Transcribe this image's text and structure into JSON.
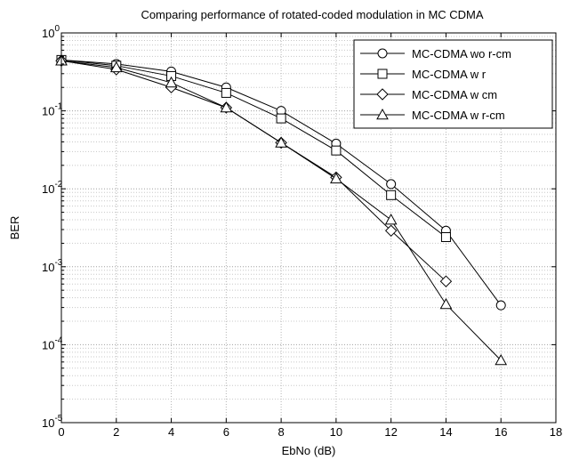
{
  "chart_data": {
    "type": "line",
    "title": "Comparing performance of rotated-coded modulation in MC CDMA",
    "xlabel": "EbNo (dB)",
    "ylabel": "BER",
    "xlim": [
      0,
      18
    ],
    "ylim": [
      1e-05,
      1
    ],
    "yscale": "log",
    "grid": true,
    "legend_position": "top-right",
    "x_ticks": [
      0,
      2,
      4,
      6,
      8,
      10,
      12,
      14,
      16,
      18
    ],
    "y_ticks": [
      {
        "base": "10",
        "exp": "-5",
        "value": 1e-05
      },
      {
        "base": "10",
        "exp": "-4",
        "value": 0.0001
      },
      {
        "base": "10",
        "exp": "-3",
        "value": 0.001
      },
      {
        "base": "10",
        "exp": "-2",
        "value": 0.01
      },
      {
        "base": "10",
        "exp": "-1",
        "value": 0.1
      },
      {
        "base": "10",
        "exp": "0",
        "value": 1
      }
    ],
    "series": [
      {
        "name": "MC-CDMA wo r-cm",
        "marker": "circle",
        "x": [
          0,
          2,
          4,
          6,
          8,
          10,
          12,
          14,
          16
        ],
        "y": [
          0.45,
          0.4,
          0.32,
          0.2,
          0.1,
          0.038,
          0.0115,
          0.0029,
          0.00032
        ]
      },
      {
        "name": "MC-CDMA w r",
        "marker": "square",
        "x": [
          0,
          2,
          4,
          6,
          8,
          10,
          12,
          14
        ],
        "y": [
          0.45,
          0.38,
          0.28,
          0.17,
          0.08,
          0.031,
          0.0083,
          0.0024
        ]
      },
      {
        "name": "MC-CDMA w cm",
        "marker": "diamond",
        "x": [
          0,
          2,
          4,
          6,
          8,
          10,
          12,
          14
        ],
        "y": [
          0.44,
          0.34,
          0.2,
          0.11,
          0.039,
          0.014,
          0.0029,
          0.00065
        ]
      },
      {
        "name": "MC-CDMA w r-cm",
        "marker": "triangle",
        "x": [
          0,
          2,
          4,
          6,
          8,
          10,
          12,
          14,
          16
        ],
        "y": [
          0.44,
          0.36,
          0.23,
          0.11,
          0.039,
          0.0135,
          0.004,
          0.00033,
          6.3e-05
        ]
      }
    ]
  }
}
